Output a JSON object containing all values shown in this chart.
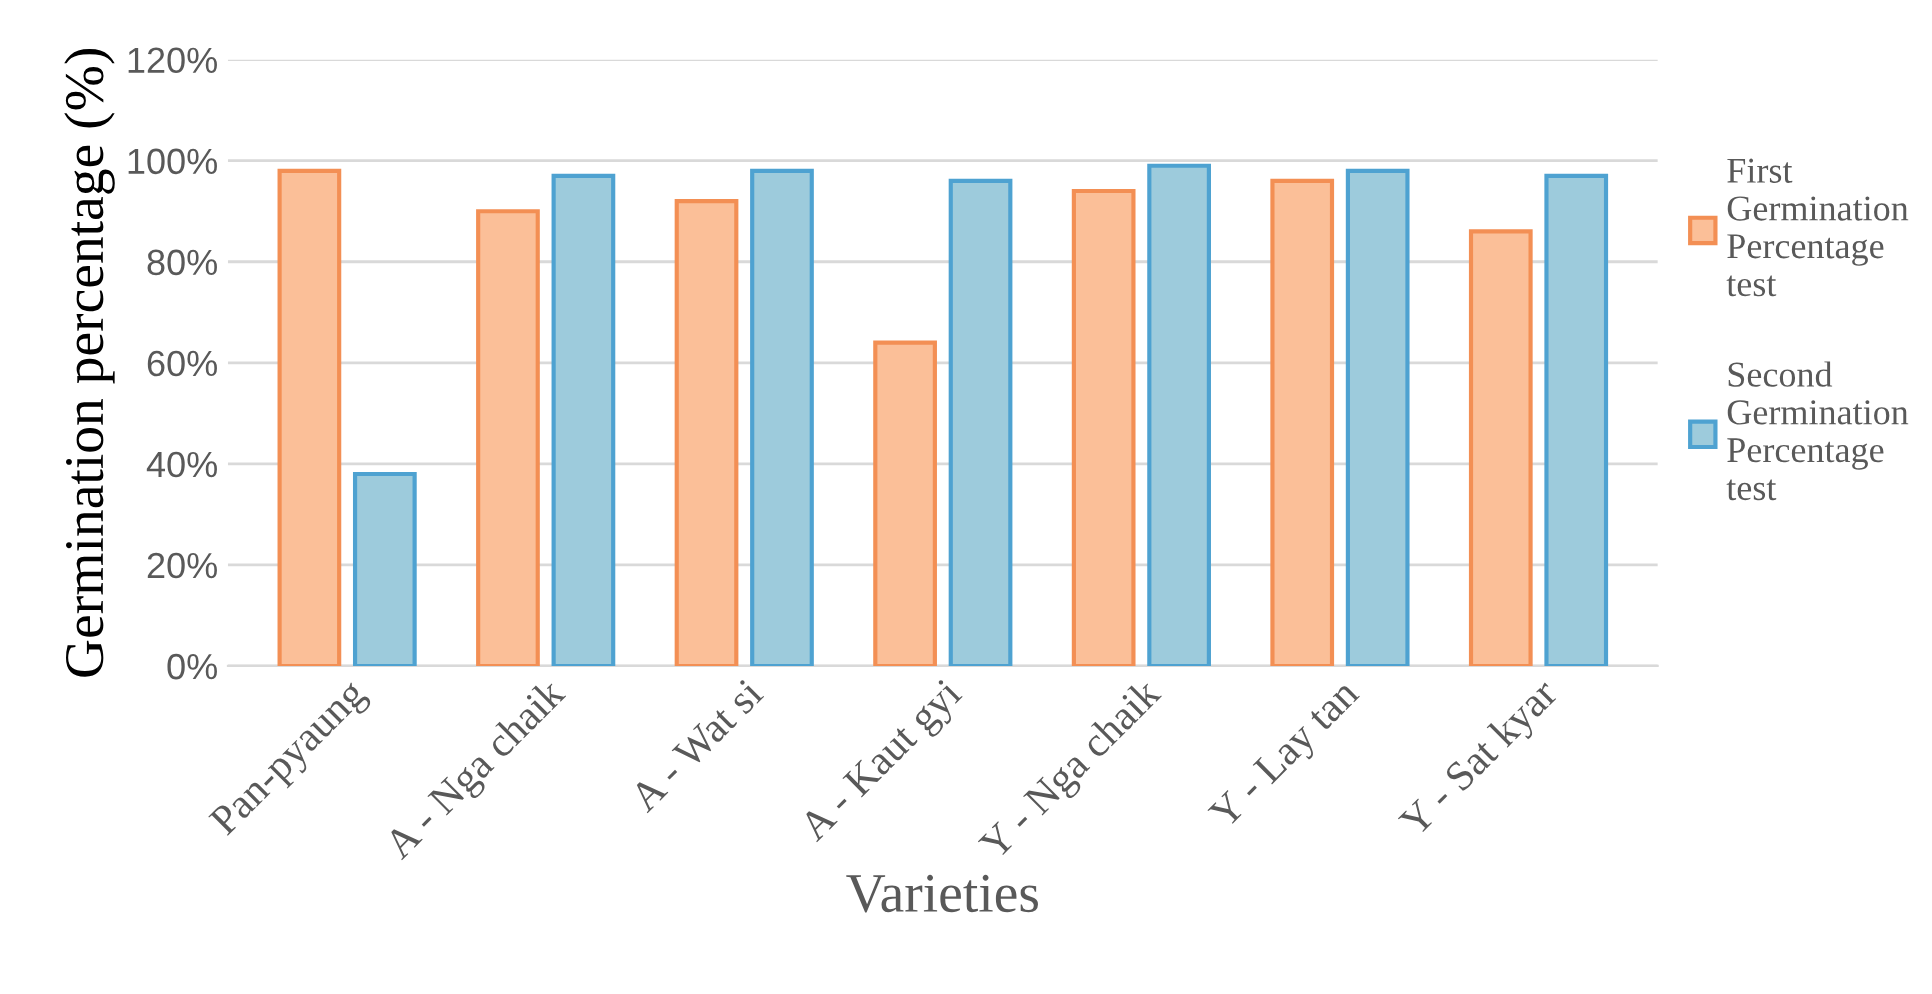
{
  "chart_data": {
    "type": "bar",
    "xlabel": "Varieties",
    "ylabel": "Germination percentage (%)",
    "categories": [
      "Pan-pyaung",
      "A - Nga chaik",
      "A - Wat si",
      "A - Kaut gyi",
      "Y - Nga chaik",
      "Y - Lay tan",
      "Y - Sat kyar"
    ],
    "series": [
      {
        "name": "First Germination Percentage test",
        "color": "#fbbf98",
        "values": [
          98,
          90,
          92,
          64,
          94,
          96,
          86
        ]
      },
      {
        "name": "Second Germination Percentage test",
        "color": "#9dcbdc",
        "values": [
          38,
          97,
          98,
          96,
          99,
          98,
          97
        ]
      }
    ],
    "ylim": [
      0,
      120
    ],
    "yticks": [
      {
        "value": 0,
        "label": "0%"
      },
      {
        "value": 20,
        "label": "20%"
      },
      {
        "value": 40,
        "label": "40%"
      },
      {
        "value": 60,
        "label": "60%"
      },
      {
        "value": 80,
        "label": "80%"
      },
      {
        "value": 100,
        "label": "100%"
      },
      {
        "value": 120,
        "label": "120%"
      }
    ],
    "grid": "y",
    "legend": "right"
  }
}
